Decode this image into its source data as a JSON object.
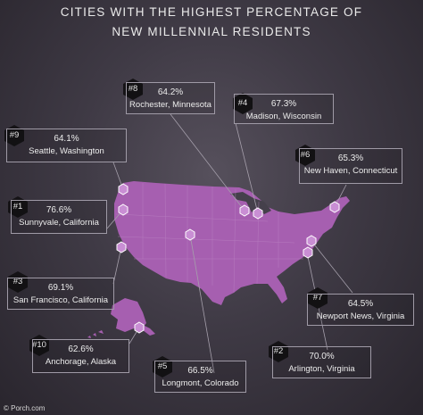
{
  "title": {
    "line1": "CITIES WITH THE HIGHEST PERCENTAGE OF",
    "line2": "NEW MILLENNIAL RESIDENTS"
  },
  "colors": {
    "map_fill": "#a65fb0",
    "marker_fill": "#c98ed4",
    "badge": "#151316",
    "box_border": "#9f9aa6"
  },
  "icons": {
    "rank_badge": "hexagon-icon",
    "city_marker": "hexagon-marker-icon"
  },
  "cities": [
    {
      "rank": "#1",
      "percent": "76.6%",
      "name": "Sunnyvale, California"
    },
    {
      "rank": "#2",
      "percent": "70.0%",
      "name": "Arlington, Virginia"
    },
    {
      "rank": "#3",
      "percent": "69.1%",
      "name": "San Francisco, California"
    },
    {
      "rank": "#4",
      "percent": "67.3%",
      "name": "Madison, Wisconsin"
    },
    {
      "rank": "#5",
      "percent": "66.5%",
      "name": "Longmont, Colorado"
    },
    {
      "rank": "#6",
      "percent": "65.3%",
      "name": "New Haven, Connecticut"
    },
    {
      "rank": "#7",
      "percent": "64.5%",
      "name": "Newport News, Virginia"
    },
    {
      "rank": "#8",
      "percent": "64.2%",
      "name": "Rochester, Minnesota"
    },
    {
      "rank": "#9",
      "percent": "64.1%",
      "name": "Seattle, Washington"
    },
    {
      "rank": "#10",
      "percent": "62.6%",
      "name": "Anchorage, Alaska"
    }
  ],
  "source": "© Porch.com"
}
